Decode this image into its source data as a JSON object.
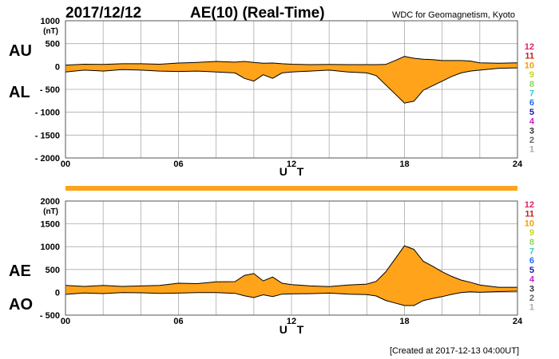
{
  "header": {
    "date": "2017/12/12",
    "title": "AE(10) (Real-Time)",
    "source": "WDC for Geomagnetism, Kyoto"
  },
  "footer": {
    "created": "[Created at 2017-12-13 04:00UT]"
  },
  "colors": {
    "fill": "#ffa31a",
    "line": "#000000",
    "grid": "#aaaaaa"
  },
  "chart_data": [
    {
      "type": "area",
      "side_labels": [
        "AU",
        "AL"
      ],
      "unit": "(nT)",
      "xlabel": "U T",
      "xlim": [
        0,
        24
      ],
      "ylim": [
        -2000,
        1000
      ],
      "x_ticks": [
        "00",
        "06",
        "12",
        "18",
        "24"
      ],
      "y_ticks": [
        "1000",
        "500",
        "0",
        "- 500",
        "- 1000",
        "- 1500",
        "- 2000"
      ],
      "grid": true,
      "x": [
        0,
        1,
        2,
        3,
        4,
        5,
        6,
        7,
        8,
        9,
        9.5,
        10,
        10.5,
        11,
        11.5,
        12,
        13,
        14,
        15,
        16,
        16.5,
        17,
        17.5,
        18,
        18.5,
        19,
        19.5,
        20,
        20.5,
        21,
        21.5,
        22,
        23,
        24
      ],
      "series": [
        {
          "values": [
            30,
            50,
            45,
            60,
            60,
            50,
            75,
            90,
            110,
            95,
            110,
            90,
            70,
            75,
            60,
            50,
            40,
            45,
            40,
            40,
            40,
            45,
            130,
            220,
            180,
            160,
            150,
            130,
            130,
            130,
            120,
            80,
            70,
            80
          ]
        },
        {
          "values": [
            -120,
            -80,
            -100,
            -70,
            -80,
            -100,
            -110,
            -100,
            -120,
            -140,
            -260,
            -320,
            -180,
            -260,
            -140,
            -120,
            -100,
            -80,
            -120,
            -140,
            -200,
            -400,
            -600,
            -800,
            -760,
            -520,
            -420,
            -320,
            -220,
            -140,
            -100,
            -80,
            -40,
            -30
          ]
        }
      ]
    },
    {
      "type": "area",
      "side_labels": [
        "AE",
        "AO"
      ],
      "unit": "(nT)",
      "xlabel": "U T",
      "xlim": [
        0,
        24
      ],
      "ylim": [
        -500,
        2000
      ],
      "x_ticks": [
        "00",
        "06",
        "12",
        "18",
        "24"
      ],
      "y_ticks": [
        "2000",
        "1500",
        "1000",
        "500",
        "0",
        "- 500"
      ],
      "grid": true,
      "x": [
        0,
        1,
        2,
        3,
        4,
        5,
        6,
        7,
        8,
        9,
        9.5,
        10,
        10.5,
        11,
        11.5,
        12,
        13,
        14,
        15,
        16,
        16.5,
        17,
        17.5,
        18,
        18.5,
        19,
        19.5,
        20,
        20.5,
        21,
        21.5,
        22,
        23,
        24
      ],
      "series": [
        {
          "values": [
            150,
            130,
            150,
            130,
            140,
            150,
            200,
            190,
            230,
            235,
            370,
            410,
            250,
            335,
            200,
            170,
            140,
            125,
            160,
            180,
            240,
            445,
            730,
            1020,
            940,
            680,
            570,
            450,
            350,
            270,
            220,
            160,
            110,
            110
          ]
        },
        {
          "values": [
            -45,
            -15,
            -28,
            -5,
            -10,
            -25,
            -18,
            -5,
            -5,
            -22,
            -75,
            -115,
            -55,
            -92,
            -40,
            -35,
            -30,
            -18,
            -40,
            -50,
            -80,
            -178,
            -235,
            -290,
            -290,
            -180,
            -135,
            -95,
            -45,
            -5,
            10,
            0,
            15,
            25
          ]
        }
      ]
    }
  ],
  "stations": [
    "12",
    "11",
    "10",
    "9",
    "8",
    "7",
    "6",
    "5",
    "4",
    "3",
    "2",
    "1"
  ],
  "station_colors": [
    "#e0206a",
    "#c81e1e",
    "#f0a000",
    "#c8d232",
    "#90d65a",
    "#30d0c8",
    "#2070f0",
    "#1e14b4",
    "#c81ec8",
    "#333333",
    "#666666",
    "#aaaaaa"
  ]
}
